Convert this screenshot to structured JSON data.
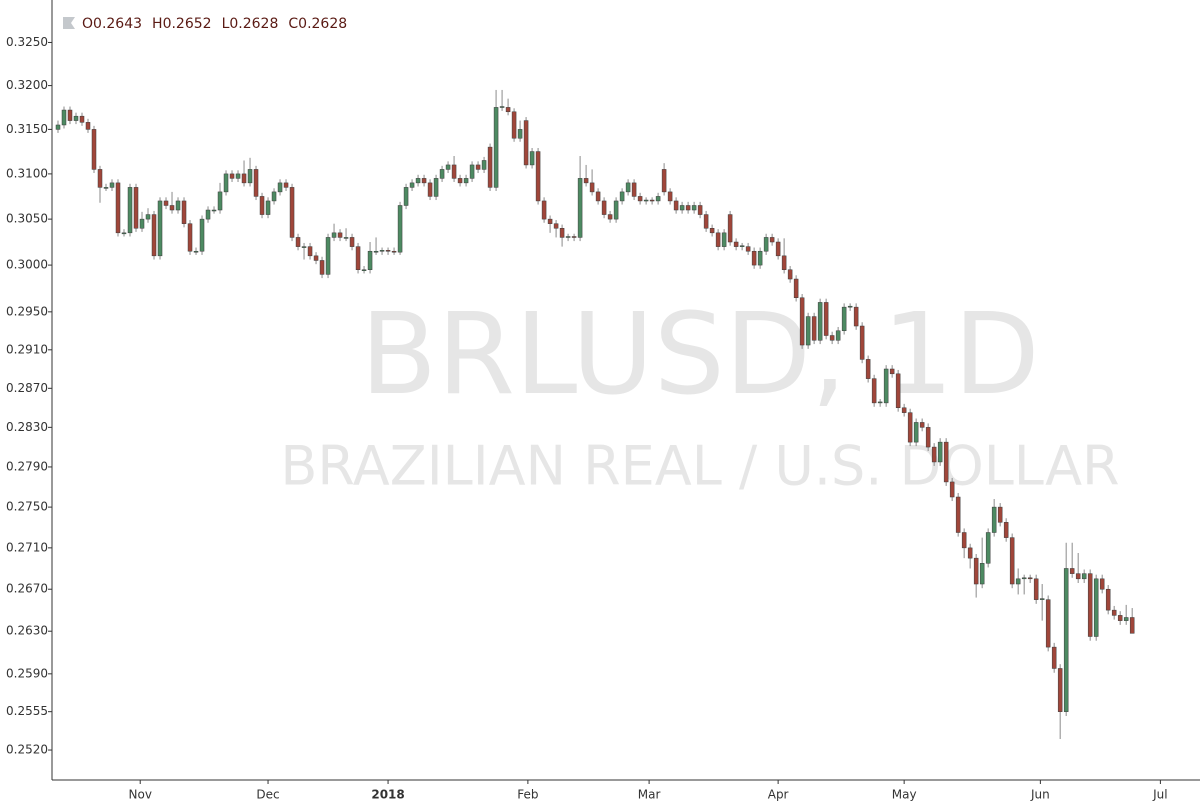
{
  "chart_data": {
    "type": "candlestick",
    "watermark": "BRLUSD, 1D",
    "watermark_subtitle": "BRAZILIAN REAL / U.S. DOLLAR",
    "ohlc_labels": [
      "O",
      "H",
      "L",
      "C"
    ],
    "log": true,
    "up_color": "#4d8a62",
    "down_color": "#a0463a",
    "wick_color": "#8a8a8a",
    "ylim": [
      0.2493,
      0.33
    ],
    "yticks": [
      {
        "value": 0.325,
        "label": "0.3250"
      },
      {
        "value": 0.32,
        "label": "0.3200"
      },
      {
        "value": 0.315,
        "label": "0.3150"
      },
      {
        "value": 0.31,
        "label": "0.3100"
      },
      {
        "value": 0.305,
        "label": "0.3050"
      },
      {
        "value": 0.3,
        "label": "0.3000"
      },
      {
        "value": 0.295,
        "label": "0.2950"
      },
      {
        "value": 0.291,
        "label": "0.2910"
      },
      {
        "value": 0.287,
        "label": "0.2870"
      },
      {
        "value": 0.283,
        "label": "0.2830"
      },
      {
        "value": 0.279,
        "label": "0.2790"
      },
      {
        "value": 0.275,
        "label": "0.2750"
      },
      {
        "value": 0.271,
        "label": "0.2710"
      },
      {
        "value": 0.267,
        "label": "0.2670"
      },
      {
        "value": 0.263,
        "label": "0.2630"
      },
      {
        "value": 0.259,
        "label": "0.2590"
      },
      0.2555,
      {
        "value": 0.252,
        "label": "0.2520"
      }
    ],
    "xlim": [
      -1,
      190.3
    ],
    "xticks": [
      {
        "value": 13.7,
        "label": "Nov"
      },
      {
        "value": 35,
        "label": "Dec"
      },
      {
        "value": 55,
        "label": "2018"
      },
      {
        "value": 78.3,
        "label": "Feb"
      },
      {
        "value": 98.5,
        "label": "Mar"
      },
      {
        "value": 120,
        "label": "Apr"
      },
      {
        "value": 141,
        "label": "May"
      },
      {
        "value": 163.7,
        "label": "Jun"
      },
      {
        "value": 183.7,
        "label": "Jul"
      }
    ],
    "ohlc": [
      [
        0.315,
        0.316,
        0.3146,
        0.3155
      ],
      [
        0.3155,
        0.3176,
        0.3151,
        0.3172
      ],
      [
        0.3172,
        0.3176,
        0.3156,
        0.316
      ],
      [
        0.316,
        0.3169,
        0.3156,
        0.3165
      ],
      [
        0.3165,
        0.3169,
        0.3154,
        0.3158
      ],
      [
        0.3158,
        0.3162,
        0.3146,
        0.315
      ],
      [
        0.315,
        0.3154,
        0.3101,
        0.3105
      ],
      [
        0.3105,
        0.3109,
        0.3068,
        0.3085
      ],
      [
        0.3085,
        0.3089,
        0.3081,
        0.3085
      ],
      [
        0.3085,
        0.3094,
        0.3081,
        0.309
      ],
      [
        0.309,
        0.3094,
        0.3031,
        0.3035
      ],
      [
        0.3035,
        0.3039,
        0.3031,
        0.3035
      ],
      [
        0.3035,
        0.3089,
        0.3031,
        0.3085
      ],
      [
        0.3085,
        0.3089,
        0.3036,
        0.304
      ],
      [
        0.304,
        0.3058,
        0.3036,
        0.305
      ],
      [
        0.305,
        0.3062,
        0.3046,
        0.3055
      ],
      [
        0.3055,
        0.3059,
        0.3006,
        0.301
      ],
      [
        0.301,
        0.3074,
        0.3006,
        0.307
      ],
      [
        0.307,
        0.3074,
        0.3061,
        0.3065
      ],
      [
        0.3065,
        0.308,
        0.3056,
        0.306
      ],
      [
        0.306,
        0.3074,
        0.3056,
        0.307
      ],
      [
        0.307,
        0.3074,
        0.3041,
        0.3045
      ],
      [
        0.3045,
        0.3049,
        0.3011,
        0.3015
      ],
      [
        0.3015,
        0.3019,
        0.3011,
        0.3015
      ],
      [
        0.3015,
        0.3054,
        0.3011,
        0.305
      ],
      [
        0.305,
        0.3064,
        0.3046,
        0.306
      ],
      [
        0.306,
        0.3064,
        0.3056,
        0.306
      ],
      [
        0.306,
        0.309,
        0.3056,
        0.308
      ],
      [
        0.308,
        0.3104,
        0.3076,
        0.31
      ],
      [
        0.31,
        0.3104,
        0.3091,
        0.3095
      ],
      [
        0.3095,
        0.3104,
        0.3091,
        0.31
      ],
      [
        0.31,
        0.3115,
        0.3086,
        0.309
      ],
      [
        0.309,
        0.3118,
        0.3086,
        0.3105
      ],
      [
        0.3105,
        0.3109,
        0.3071,
        0.3075
      ],
      [
        0.3075,
        0.3079,
        0.3051,
        0.3055
      ],
      [
        0.3055,
        0.3074,
        0.3051,
        0.307
      ],
      [
        0.307,
        0.3084,
        0.3066,
        0.308
      ],
      [
        0.308,
        0.3094,
        0.3076,
        0.309
      ],
      [
        0.309,
        0.3094,
        0.3081,
        0.3085
      ],
      [
        0.3085,
        0.3089,
        0.3026,
        0.303
      ],
      [
        0.303,
        0.3034,
        0.3016,
        0.302
      ],
      [
        0.302,
        0.3024,
        0.3006,
        0.302
      ],
      [
        0.302,
        0.3024,
        0.3006,
        0.301
      ],
      [
        0.301,
        0.3014,
        0.3001,
        0.3005
      ],
      [
        0.3005,
        0.3009,
        0.2986,
        0.299
      ],
      [
        0.299,
        0.3034,
        0.2986,
        0.303
      ],
      [
        0.303,
        0.3045,
        0.3026,
        0.3035
      ],
      [
        0.3035,
        0.3039,
        0.3026,
        0.303
      ],
      [
        0.303,
        0.304,
        0.3026,
        0.303
      ],
      [
        0.303,
        0.3034,
        0.3016,
        0.302
      ],
      [
        0.302,
        0.3024,
        0.2991,
        0.2995
      ],
      [
        0.2995,
        0.2999,
        0.2991,
        0.2995
      ],
      [
        0.2995,
        0.3025,
        0.2991,
        0.3015
      ],
      [
        0.3015,
        0.303,
        0.3011,
        0.3015
      ],
      [
        0.3015,
        0.3019,
        0.3011,
        0.3016
      ],
      [
        0.3016,
        0.3019,
        0.3011,
        0.3015
      ],
      [
        0.3015,
        0.3019,
        0.3011,
        0.3014
      ],
      [
        0.3014,
        0.3069,
        0.3011,
        0.3065
      ],
      [
        0.3065,
        0.3089,
        0.3061,
        0.3085
      ],
      [
        0.3085,
        0.3094,
        0.3081,
        0.309
      ],
      [
        0.309,
        0.3099,
        0.3086,
        0.3095
      ],
      [
        0.3095,
        0.3099,
        0.3086,
        0.309
      ],
      [
        0.309,
        0.3094,
        0.3071,
        0.3075
      ],
      [
        0.3075,
        0.3099,
        0.3071,
        0.3095
      ],
      [
        0.3095,
        0.3109,
        0.3091,
        0.3105
      ],
      [
        0.3105,
        0.3114,
        0.3101,
        0.311
      ],
      [
        0.311,
        0.312,
        0.3091,
        0.3095
      ],
      [
        0.3095,
        0.3099,
        0.3086,
        0.309
      ],
      [
        0.309,
        0.3099,
        0.3086,
        0.3095
      ],
      [
        0.3095,
        0.3114,
        0.3091,
        0.311
      ],
      [
        0.311,
        0.3114,
        0.3101,
        0.3105
      ],
      [
        0.3105,
        0.3119,
        0.3101,
        0.3115
      ],
      [
        0.313,
        0.3134,
        0.3081,
        0.3085
      ],
      [
        0.3085,
        0.3195,
        0.3081,
        0.3175
      ],
      [
        0.3175,
        0.3195,
        0.3171,
        0.3176
      ],
      [
        0.3175,
        0.3185,
        0.3166,
        0.317
      ],
      [
        0.317,
        0.3174,
        0.3136,
        0.314
      ],
      [
        0.314,
        0.316,
        0.3136,
        0.315
      ],
      [
        0.316,
        0.3164,
        0.3106,
        0.311
      ],
      [
        0.311,
        0.3129,
        0.3106,
        0.3125
      ],
      [
        0.3125,
        0.3129,
        0.3066,
        0.307
      ],
      [
        0.307,
        0.3074,
        0.3046,
        0.305
      ],
      [
        0.305,
        0.3054,
        0.3035,
        0.3045
      ],
      [
        0.3045,
        0.3049,
        0.303,
        0.304
      ],
      [
        0.304,
        0.3044,
        0.302,
        0.303
      ],
      [
        0.303,
        0.3034,
        0.3026,
        0.3031
      ],
      [
        0.3031,
        0.3034,
        0.3026,
        0.303
      ],
      [
        0.303,
        0.312,
        0.3026,
        0.3095
      ],
      [
        0.3095,
        0.311,
        0.3086,
        0.309
      ],
      [
        0.309,
        0.3105,
        0.3076,
        0.308
      ],
      [
        0.308,
        0.3084,
        0.3066,
        0.307
      ],
      [
        0.307,
        0.3074,
        0.3051,
        0.3055
      ],
      [
        0.3055,
        0.3059,
        0.3046,
        0.305
      ],
      [
        0.305,
        0.3074,
        0.3046,
        0.307
      ],
      [
        0.307,
        0.3084,
        0.3066,
        0.308
      ],
      [
        0.308,
        0.3094,
        0.3076,
        0.309
      ],
      [
        0.309,
        0.3094,
        0.3071,
        0.3075
      ],
      [
        0.3075,
        0.3079,
        0.3066,
        0.307
      ],
      [
        0.307,
        0.3074,
        0.3066,
        0.3071
      ],
      [
        0.3071,
        0.3074,
        0.3066,
        0.307
      ],
      [
        0.307,
        0.3079,
        0.3066,
        0.3075
      ],
      [
        0.3105,
        0.3112,
        0.3076,
        0.308
      ],
      [
        0.308,
        0.3084,
        0.3066,
        0.307
      ],
      [
        0.307,
        0.3074,
        0.3056,
        0.306
      ],
      [
        0.306,
        0.3069,
        0.3056,
        0.3065
      ],
      [
        0.3065,
        0.3069,
        0.3056,
        0.306
      ],
      [
        0.306,
        0.3069,
        0.3056,
        0.3065
      ],
      [
        0.3065,
        0.3069,
        0.3051,
        0.3055
      ],
      [
        0.3055,
        0.3059,
        0.3036,
        0.304
      ],
      [
        0.304,
        0.3044,
        0.3031,
        0.3035
      ],
      [
        0.3035,
        0.3039,
        0.3016,
        0.302
      ],
      [
        0.302,
        0.3039,
        0.3016,
        0.3035
      ],
      [
        0.3055,
        0.3059,
        0.3021,
        0.3025
      ],
      [
        0.3025,
        0.3029,
        0.3016,
        0.302
      ],
      [
        0.302,
        0.3024,
        0.3016,
        0.3021
      ],
      [
        0.302,
        0.3024,
        0.3011,
        0.3015
      ],
      [
        0.3015,
        0.3019,
        0.2996,
        0.3
      ],
      [
        0.3,
        0.3019,
        0.2996,
        0.3015
      ],
      [
        0.3015,
        0.3034,
        0.3011,
        0.303
      ],
      [
        0.303,
        0.3034,
        0.3021,
        0.3025
      ],
      [
        0.3025,
        0.3029,
        0.3006,
        0.301
      ],
      [
        0.301,
        0.3029,
        0.2991,
        0.2995
      ],
      [
        0.2995,
        0.2999,
        0.2981,
        0.2985
      ],
      [
        0.2985,
        0.2989,
        0.2961,
        0.2965
      ],
      [
        0.2965,
        0.2969,
        0.2911,
        0.2915
      ],
      [
        0.2915,
        0.2949,
        0.2911,
        0.2945
      ],
      [
        0.2945,
        0.2949,
        0.2916,
        0.292
      ],
      [
        0.292,
        0.2964,
        0.2916,
        0.296
      ],
      [
        0.296,
        0.2964,
        0.2921,
        0.2925
      ],
      [
        0.2925,
        0.2929,
        0.2916,
        0.292
      ],
      [
        0.292,
        0.2934,
        0.2916,
        0.293
      ],
      [
        0.293,
        0.2959,
        0.2926,
        0.2955
      ],
      [
        0.2955,
        0.2959,
        0.2951,
        0.2956
      ],
      [
        0.2955,
        0.2959,
        0.2931,
        0.2935
      ],
      [
        0.2935,
        0.2939,
        0.2896,
        0.29
      ],
      [
        0.29,
        0.2904,
        0.2876,
        0.288
      ],
      [
        0.288,
        0.2884,
        0.2851,
        0.2855
      ],
      [
        0.2855,
        0.2859,
        0.2851,
        0.2856
      ],
      [
        0.2855,
        0.2894,
        0.2851,
        0.289
      ],
      [
        0.289,
        0.2894,
        0.2881,
        0.2885
      ],
      [
        0.2885,
        0.2889,
        0.2846,
        0.285
      ],
      [
        0.285,
        0.2854,
        0.2841,
        0.2845
      ],
      [
        0.2845,
        0.2849,
        0.2811,
        0.2815
      ],
      [
        0.2815,
        0.2839,
        0.2811,
        0.2835
      ],
      [
        0.2835,
        0.2839,
        0.2826,
        0.283
      ],
      [
        0.283,
        0.2834,
        0.2806,
        0.281
      ],
      [
        0.281,
        0.2814,
        0.2791,
        0.2795
      ],
      [
        0.2795,
        0.2819,
        0.2791,
        0.2815
      ],
      [
        0.2815,
        0.2819,
        0.2771,
        0.2775
      ],
      [
        0.2775,
        0.2779,
        0.2756,
        0.276
      ],
      [
        0.276,
        0.2764,
        0.2721,
        0.2725
      ],
      [
        0.2725,
        0.2729,
        0.27,
        0.271
      ],
      [
        0.271,
        0.2714,
        0.269,
        0.27
      ],
      [
        0.27,
        0.2704,
        0.2662,
        0.2675
      ],
      [
        0.2675,
        0.272,
        0.2671,
        0.2695
      ],
      [
        0.2695,
        0.2729,
        0.2691,
        0.2725
      ],
      [
        0.2725,
        0.2758,
        0.2721,
        0.275
      ],
      [
        0.275,
        0.2754,
        0.2731,
        0.2735
      ],
      [
        0.2735,
        0.2739,
        0.2716,
        0.272
      ],
      [
        0.272,
        0.2724,
        0.2671,
        0.2675
      ],
      [
        0.2675,
        0.269,
        0.2665,
        0.268
      ],
      [
        0.268,
        0.2684,
        0.2665,
        0.2681
      ],
      [
        0.2681,
        0.2684,
        0.2676,
        0.268
      ],
      [
        0.268,
        0.2684,
        0.2656,
        0.266
      ],
      [
        0.266,
        0.2675,
        0.264,
        0.2661
      ],
      [
        0.266,
        0.2664,
        0.2611,
        0.2615
      ],
      [
        0.2615,
        0.2619,
        0.2591,
        0.2595
      ],
      [
        0.2595,
        0.2599,
        0.253,
        0.2555
      ],
      [
        0.2555,
        0.2715,
        0.2551,
        0.269
      ],
      [
        0.269,
        0.2715,
        0.2681,
        0.2685
      ],
      [
        0.2685,
        0.2705,
        0.2676,
        0.268
      ],
      [
        0.268,
        0.2689,
        0.2676,
        0.2685
      ],
      [
        0.2685,
        0.2689,
        0.2621,
        0.2625
      ],
      [
        0.2625,
        0.2684,
        0.2621,
        0.268
      ],
      [
        0.268,
        0.2684,
        0.2666,
        0.267
      ],
      [
        0.267,
        0.2674,
        0.2646,
        0.265
      ],
      [
        0.265,
        0.2654,
        0.2641,
        0.2645
      ],
      [
        0.2645,
        0.2649,
        0.2636,
        0.264
      ],
      [
        0.264,
        0.2655,
        0.2636,
        0.2643
      ],
      [
        0.2643,
        0.2652,
        0.2628,
        0.2628
      ]
    ]
  }
}
